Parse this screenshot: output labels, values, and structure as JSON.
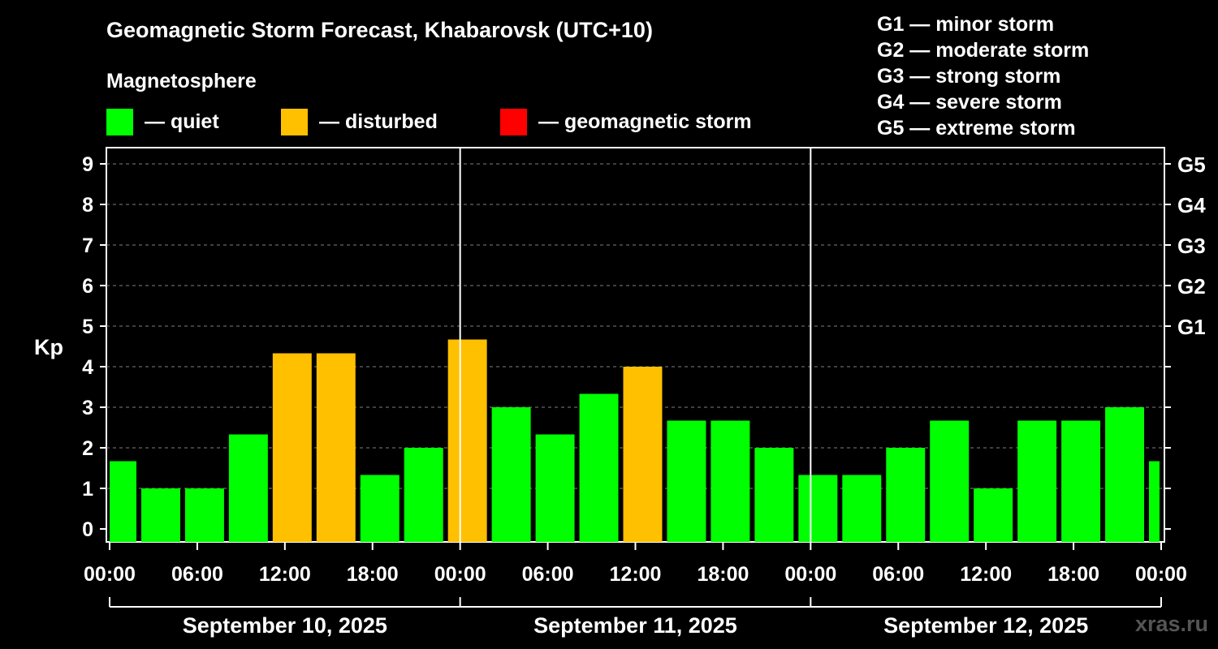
{
  "header": {
    "title": "Geomagnetic Storm Forecast, Khabarovsk (UTC+10)",
    "subtitle": "Magnetosphere",
    "watermark": "xras.ru"
  },
  "legend": [
    {
      "label": "— quiet",
      "color": "#00ff00"
    },
    {
      "label": "— disturbed",
      "color": "#ffc000"
    },
    {
      "label": "— geomagnetic storm",
      "color": "#ff0000"
    }
  ],
  "storm_scale": [
    "G1 — minor storm",
    "G2 — moderate storm",
    "G3 — strong storm",
    "G4 — severe storm",
    "G5 — extreme storm"
  ],
  "colors": {
    "quiet": "#00ff00",
    "disturbed": "#ffc000",
    "storm": "#ff0000"
  },
  "chart_data": {
    "type": "bar",
    "ylabel": "Kp",
    "ylim": [
      0,
      9
    ],
    "y_ticks": [
      0,
      1,
      2,
      3,
      4,
      5,
      6,
      7,
      8,
      9
    ],
    "right_ticks": [
      {
        "value": 5,
        "label": "G1"
      },
      {
        "value": 6,
        "label": "G2"
      },
      {
        "value": 7,
        "label": "G3"
      },
      {
        "value": 8,
        "label": "G4"
      },
      {
        "value": 9,
        "label": "G5"
      }
    ],
    "grid": true,
    "x_tick_labels": [
      "00:00",
      "06:00",
      "12:00",
      "18:00",
      "00:00",
      "06:00",
      "12:00",
      "18:00",
      "00:00",
      "06:00",
      "12:00",
      "18:00",
      "00:00"
    ],
    "days": [
      "September 10, 2025",
      "September 11, 2025",
      "September 12, 2025"
    ],
    "bars": [
      {
        "start_hour": 0,
        "end_hour": 2,
        "kp": 1.67,
        "level": "quiet"
      },
      {
        "start_hour": 2,
        "end_hour": 5,
        "kp": 1.0,
        "level": "quiet"
      },
      {
        "start_hour": 5,
        "end_hour": 8,
        "kp": 1.0,
        "level": "quiet"
      },
      {
        "start_hour": 8,
        "end_hour": 11,
        "kp": 2.33,
        "level": "quiet"
      },
      {
        "start_hour": 11,
        "end_hour": 14,
        "kp": 4.33,
        "level": "disturbed"
      },
      {
        "start_hour": 14,
        "end_hour": 17,
        "kp": 4.33,
        "level": "disturbed"
      },
      {
        "start_hour": 17,
        "end_hour": 20,
        "kp": 1.33,
        "level": "quiet"
      },
      {
        "start_hour": 20,
        "end_hour": 23,
        "kp": 2.0,
        "level": "quiet"
      },
      {
        "start_hour": 23,
        "end_hour": 26,
        "kp": 4.67,
        "level": "disturbed"
      },
      {
        "start_hour": 26,
        "end_hour": 29,
        "kp": 3.0,
        "level": "quiet"
      },
      {
        "start_hour": 29,
        "end_hour": 32,
        "kp": 2.33,
        "level": "quiet"
      },
      {
        "start_hour": 32,
        "end_hour": 35,
        "kp": 3.33,
        "level": "quiet"
      },
      {
        "start_hour": 35,
        "end_hour": 38,
        "kp": 4.0,
        "level": "disturbed"
      },
      {
        "start_hour": 38,
        "end_hour": 41,
        "kp": 2.67,
        "level": "quiet"
      },
      {
        "start_hour": 41,
        "end_hour": 44,
        "kp": 2.67,
        "level": "quiet"
      },
      {
        "start_hour": 44,
        "end_hour": 47,
        "kp": 2.0,
        "level": "quiet"
      },
      {
        "start_hour": 47,
        "end_hour": 50,
        "kp": 1.33,
        "level": "quiet"
      },
      {
        "start_hour": 50,
        "end_hour": 53,
        "kp": 1.33,
        "level": "quiet"
      },
      {
        "start_hour": 53,
        "end_hour": 56,
        "kp": 2.0,
        "level": "quiet"
      },
      {
        "start_hour": 56,
        "end_hour": 59,
        "kp": 2.67,
        "level": "quiet"
      },
      {
        "start_hour": 59,
        "end_hour": 62,
        "kp": 1.0,
        "level": "quiet"
      },
      {
        "start_hour": 62,
        "end_hour": 65,
        "kp": 2.67,
        "level": "quiet"
      },
      {
        "start_hour": 65,
        "end_hour": 68,
        "kp": 2.67,
        "level": "quiet"
      },
      {
        "start_hour": 68,
        "end_hour": 71,
        "kp": 3.0,
        "level": "quiet"
      },
      {
        "start_hour": 71,
        "end_hour": 72,
        "kp": 1.67,
        "level": "quiet"
      }
    ]
  }
}
